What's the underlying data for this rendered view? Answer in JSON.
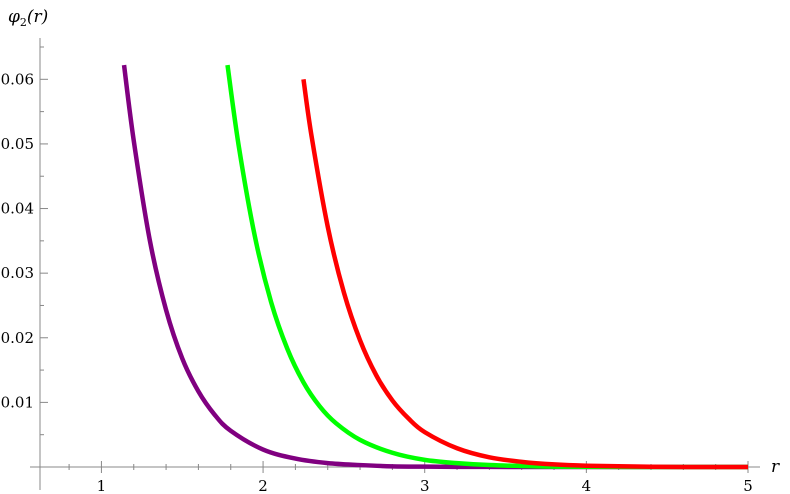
{
  "chart_data": {
    "type": "line",
    "title": "",
    "ylabel_parts": {
      "symbol": "φ",
      "subscript": "2",
      "suffix": "(r)"
    },
    "xlabel": "r",
    "xlim": [
      0.62,
      5.0
    ],
    "ylim": [
      0.0,
      0.065
    ],
    "x_ticks": [
      1,
      2,
      3,
      4,
      5
    ],
    "x_tick_labels": [
      "1",
      "2",
      "3",
      "4",
      "5"
    ],
    "y_ticks": [
      0.01,
      0.02,
      0.03,
      0.04,
      0.05,
      0.06
    ],
    "y_tick_labels": [
      "0.01",
      "0.02",
      "0.03",
      "0.04",
      "0.05",
      "0.06"
    ],
    "grid": false,
    "legend": "none",
    "series": [
      {
        "color": "#800080",
        "x": [
          1.14,
          1.2,
          1.3,
          1.4,
          1.5,
          1.6,
          1.7,
          1.8,
          2.0,
          2.2,
          2.4,
          2.6,
          2.8,
          3.0,
          3.3,
          3.6,
          4.0,
          4.5,
          5.0
        ],
        "y": [
          0.0622,
          0.0505,
          0.035,
          0.0243,
          0.0168,
          0.0117,
          0.0081,
          0.0056,
          0.0027,
          0.0013,
          0.0006,
          0.0003,
          0.0001,
          5e-05,
          2e-05,
          0.0,
          0.0,
          0.0,
          0.0
        ]
      },
      {
        "color": "#00ff00",
        "x": [
          1.78,
          1.85,
          1.95,
          2.05,
          2.15,
          2.25,
          2.35,
          2.45,
          2.6,
          2.8,
          3.0,
          3.2,
          3.4,
          3.7,
          4.0,
          4.5,
          5.0
        ],
        "y": [
          0.0622,
          0.0496,
          0.0356,
          0.0255,
          0.0183,
          0.0131,
          0.0094,
          0.0068,
          0.0042,
          0.0022,
          0.0011,
          0.0006,
          0.0003,
          0.0001,
          3e-05,
          0.0,
          0.0
        ]
      },
      {
        "color": "#ff0000",
        "x": [
          2.25,
          2.3,
          2.4,
          2.5,
          2.6,
          2.7,
          2.8,
          2.9,
          3.0,
          3.2,
          3.4,
          3.6,
          3.8,
          4.0,
          4.3,
          4.6,
          5.0
        ],
        "y": [
          0.06,
          0.0512,
          0.0372,
          0.027,
          0.0196,
          0.0142,
          0.0103,
          0.0075,
          0.0054,
          0.0029,
          0.0015,
          0.0008,
          0.0004,
          0.0002,
          8e-05,
          0.0,
          0.0
        ]
      }
    ]
  }
}
